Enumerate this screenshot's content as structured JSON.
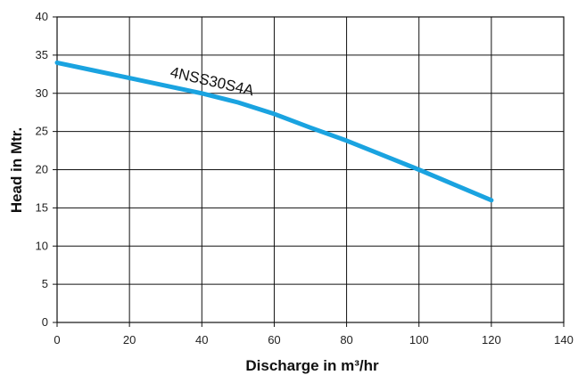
{
  "chart_data": {
    "type": "line",
    "title": "",
    "xlabel": "Discharge in m³/hr",
    "ylabel": "Head in Mtr.",
    "xlim": [
      0,
      140
    ],
    "ylim": [
      0,
      40
    ],
    "x_ticks": [
      0,
      20,
      40,
      60,
      80,
      100,
      120,
      140
    ],
    "y_ticks": [
      0,
      5,
      10,
      15,
      20,
      25,
      30,
      35,
      40
    ],
    "grid": true,
    "series": [
      {
        "name": "4NSS30S4A",
        "color": "#1aa3e0",
        "x": [
          0,
          10,
          20,
          30,
          40,
          50,
          60,
          70,
          80,
          90,
          100,
          110,
          120
        ],
        "y": [
          34,
          33,
          32,
          31,
          30,
          28.8,
          27.3,
          25.5,
          23.8,
          21.9,
          20,
          18,
          16
        ]
      }
    ]
  }
}
